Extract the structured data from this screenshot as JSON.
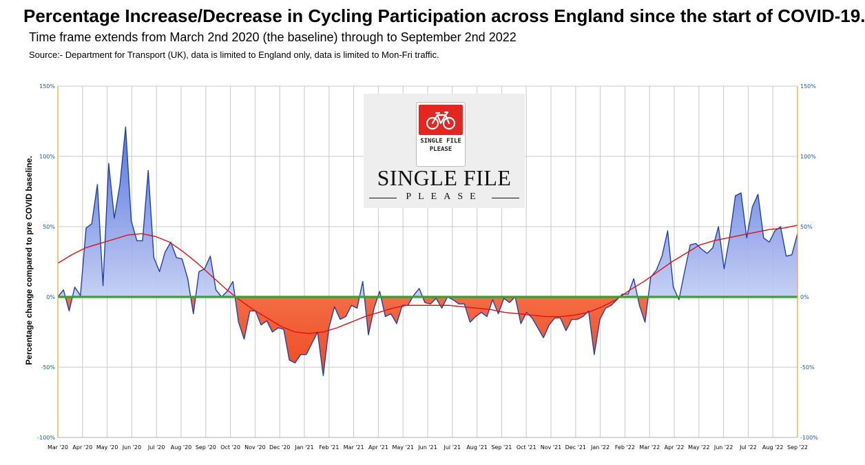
{
  "header": {
    "title": "Percentage Increase/Decrease in Cycling Participation across England since the start of COVID-19.",
    "subtitle": "Time frame extends from March 2nd 2020 (the baseline) through to September 2nd 2022",
    "source": "Source:-  Department for Transport (UK),  data is limited to England only,  data is limited to Mon-Fri traffic."
  },
  "logo": {
    "sign_text_line1": "SINGLE FILE",
    "sign_text_line2": "PLEASE",
    "wordmark": "SINGLE FILE",
    "tagline": "PLEASE",
    "icon": "bicycle-icon"
  },
  "chart_data": {
    "type": "area",
    "ylabel": "Percentage change compared to pre COVID baseline.",
    "ylim": [
      -100,
      150
    ],
    "yticks": [
      "150%",
      "100%",
      "50%",
      "0%",
      "-50%",
      "-100%"
    ],
    "yticks_values": [
      150,
      100,
      50,
      0,
      -50,
      -100
    ],
    "xlim": [
      0,
      30
    ],
    "x_tick_labels": [
      "Mar '20",
      "Apr '20",
      "May '20",
      "Jun '20",
      "Jul '20",
      "Aug '20",
      "Sep '20",
      "Oct '20",
      "Nov '20",
      "Dec '20",
      "Jan '21",
      "Feb '21",
      "Mar '21",
      "Apr '21",
      "May '21",
      "Jun '21",
      "Jul '21",
      "Aug '21",
      "Sep '21",
      "Oct '21",
      "Nov '21",
      "Dec '21",
      "Jan '22",
      "Feb '22",
      "Mar '22",
      "Apr '22",
      "May '22",
      "Jun '22",
      "Jul '22",
      "Aug '22",
      "Sep '22"
    ],
    "grid": true,
    "colors": {
      "positive_fill": "#8fa6e6",
      "negative_fill": "#f2704c",
      "line": "#1f3fae",
      "trend": "#e01010",
      "baseline": "#3aa032",
      "axis": "#f0a030"
    },
    "series": [
      {
        "values": [
          0,
          5,
          -10,
          7,
          1,
          49,
          52,
          80,
          8,
          95,
          56,
          80,
          121,
          54,
          40,
          40,
          90,
          28,
          18,
          32,
          39,
          28,
          27,
          13,
          -12,
          18,
          20,
          29,
          5,
          0,
          4,
          11,
          -18,
          -30,
          -10,
          -10,
          -20,
          -17,
          -25,
          -22,
          -23,
          -45,
          -47,
          -41,
          -41,
          -33,
          -25,
          -56,
          -22,
          -7,
          -16,
          -14,
          -6,
          -8,
          11,
          -27,
          -8,
          4,
          -14,
          -12,
          -19,
          -6,
          -6,
          1,
          6,
          -4,
          -5,
          -1,
          -8,
          0,
          -2,
          -5,
          -5,
          -18,
          -14,
          -11,
          -14,
          -2,
          -12,
          -1,
          -4,
          0,
          -19,
          -11,
          -15,
          -22,
          -29,
          -20,
          -15,
          -15,
          -24,
          -16,
          -16,
          -14,
          -10,
          -41,
          -16,
          -8,
          -6,
          -2,
          2,
          2,
          13,
          -6,
          -18,
          14,
          19,
          29,
          47,
          7,
          -2,
          18,
          37,
          38,
          34,
          31,
          35,
          50,
          20,
          43,
          72,
          74,
          42,
          64,
          73,
          42,
          39,
          47,
          50,
          29,
          30,
          45
        ],
        "trend": [
          24,
          30,
          35,
          38,
          41,
          44,
          45,
          43,
          39,
          32,
          24,
          15,
          6,
          -2,
          -9,
          -15,
          -21,
          -25,
          -26,
          -25,
          -22,
          -18,
          -14,
          -11,
          -8,
          -6,
          -6,
          -6,
          -6,
          -7,
          -8,
          -9,
          -11,
          -12,
          -13,
          -14,
          -14,
          -13,
          -11,
          -7,
          -2,
          5,
          11,
          18,
          25,
          31,
          37,
          40,
          42,
          44,
          46,
          48,
          49,
          51
        ]
      }
    ]
  }
}
